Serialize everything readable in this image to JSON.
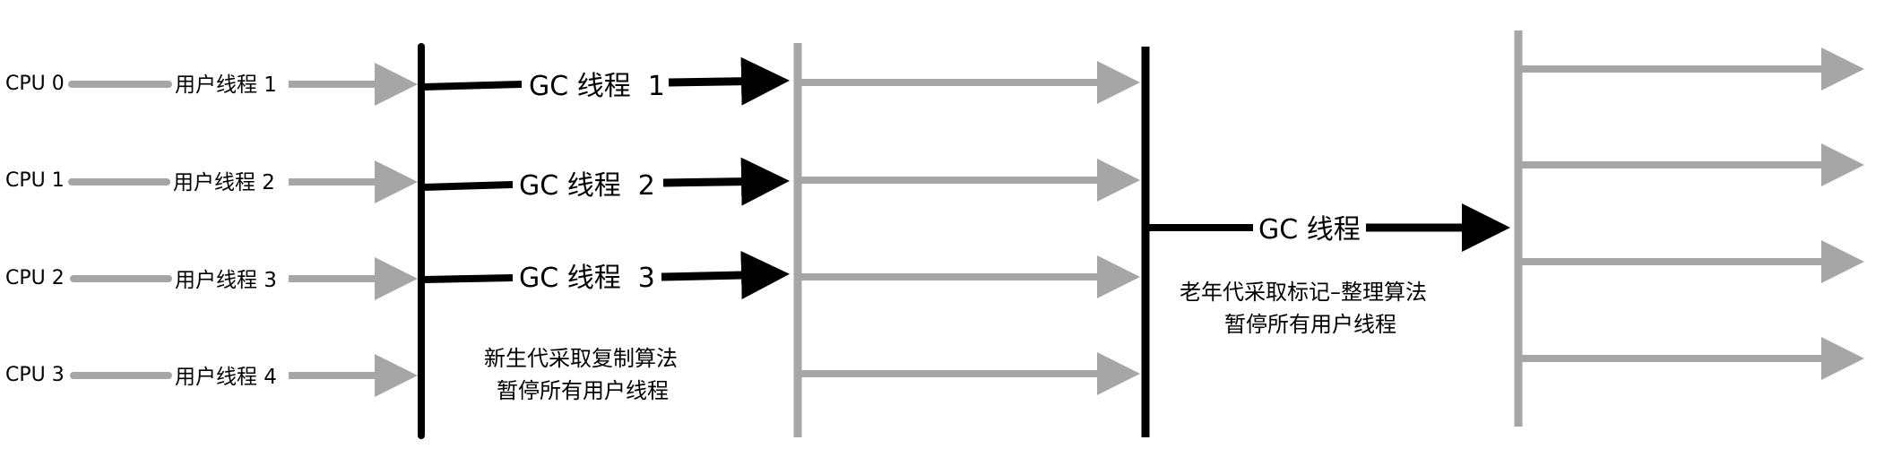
{
  "diagram": {
    "cpus": [
      "CPU 0",
      "CPU 1",
      "CPU 2",
      "CPU 3"
    ],
    "user_threads": [
      "用户线程 1",
      "用户线程 2",
      "用户线程 3",
      "用户线程 4"
    ],
    "young_gc_threads": [
      "GC 线程  1",
      "GC 线程  2",
      "GC 线程  3"
    ],
    "old_gc_thread": "GC 线程",
    "young_caption": [
      "新生代采取复制算法",
      "暂停所有用户线程"
    ],
    "old_caption": [
      "老年代采取标记–整理算法",
      "暂停所有用户线程"
    ],
    "colors": {
      "user_thread": "#a6a6a6",
      "gc_thread": "#000000",
      "barrier": "#000000",
      "resume_line": "#a6a6a6"
    }
  }
}
